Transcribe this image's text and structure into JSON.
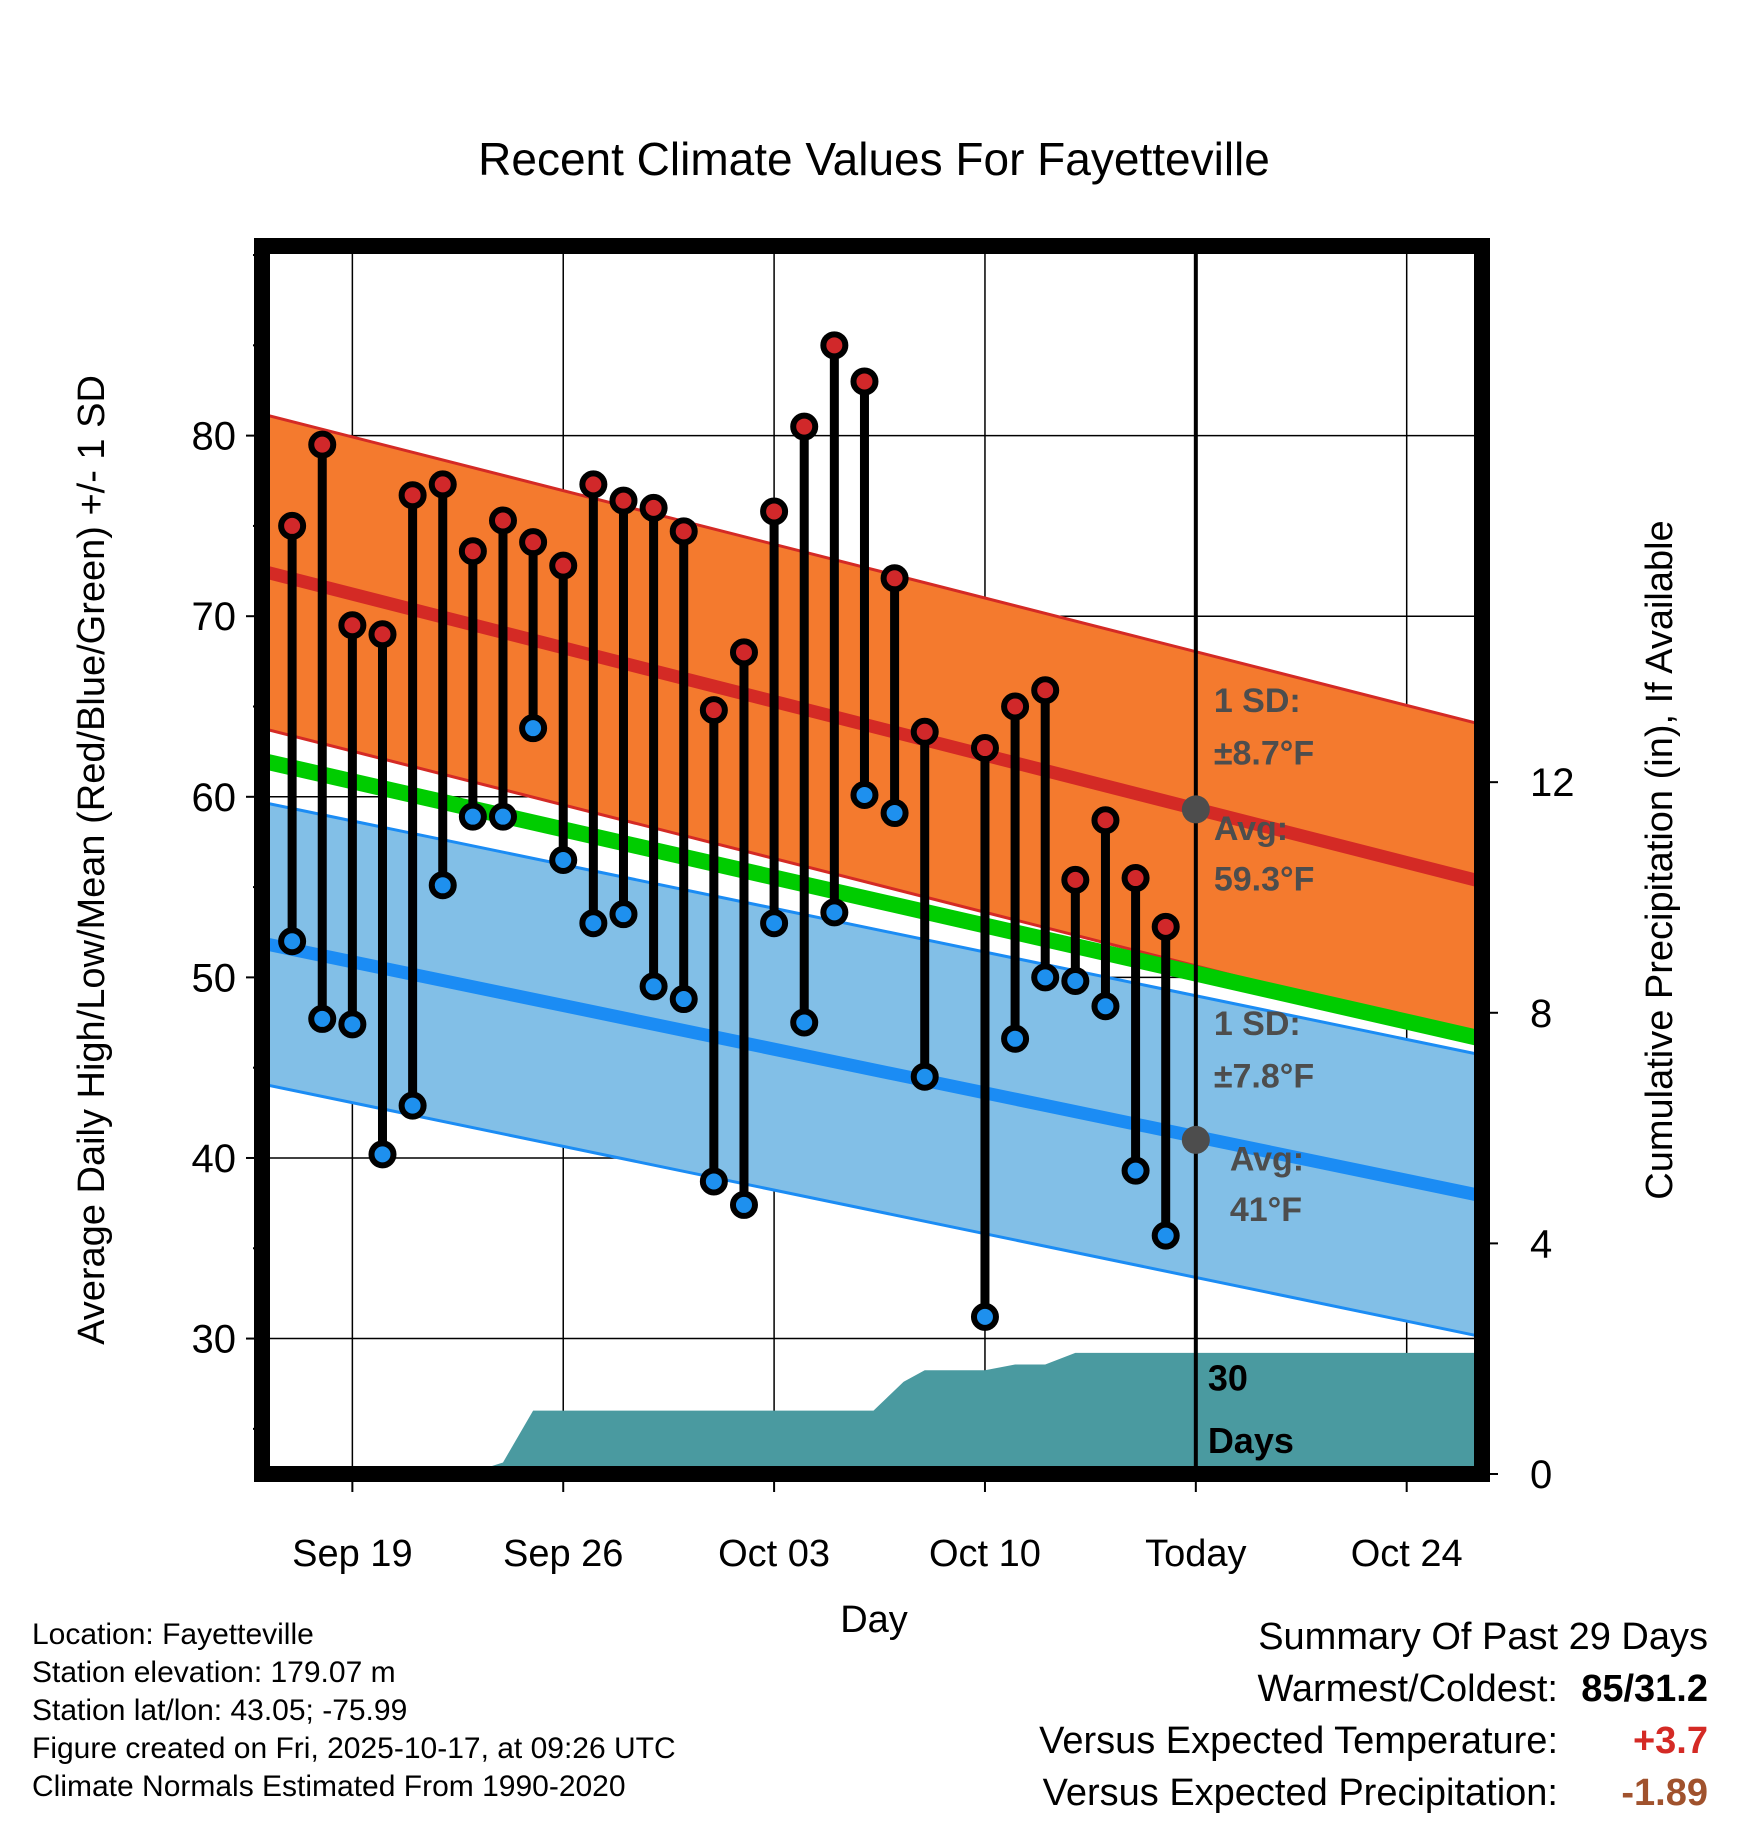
{
  "chart_data": {
    "type": "line",
    "title": "Recent Climate Values For Fayetteville",
    "xlabel": "Day",
    "ylabel": "Average Daily High/Low/Mean (Red/Blue/Green) +/- 1 SD",
    "y2label": "Cumulative Precipitation (in), If Available",
    "ylim": [
      22.5,
      90.5
    ],
    "y2lim": [
      0,
      21.3
    ],
    "yticks": [
      30,
      40,
      50,
      60,
      70,
      80
    ],
    "y2ticks": [
      0,
      4,
      8,
      12
    ],
    "xlim": [
      0,
      40.5
    ],
    "xtick_labels": [
      {
        "day": 3,
        "label": "Sep 19"
      },
      {
        "day": 10,
        "label": "Sep 26"
      },
      {
        "day": 17,
        "label": "Oct 03"
      },
      {
        "day": 24,
        "label": "Oct 10"
      },
      {
        "day": 31,
        "label": "Today"
      },
      {
        "day": 38,
        "label": "Oct 24"
      }
    ],
    "days": [
      1,
      2,
      3,
      4,
      5,
      6,
      7,
      8,
      9,
      10,
      11,
      12,
      13,
      14,
      15,
      16,
      17,
      18,
      19,
      20,
      21,
      22,
      23,
      24,
      25,
      26,
      27,
      28,
      29,
      30
    ],
    "highs": [
      75,
      79.5,
      69.5,
      69,
      76.7,
      77.3,
      73.6,
      75.3,
      74.1,
      72.8,
      77.3,
      76.4,
      76,
      74.7,
      64.8,
      68,
      75.8,
      80.5,
      85,
      83,
      72.1,
      63.6,
      null,
      62.7,
      65,
      65.9,
      55.4,
      58.7,
      55.5,
      52.8
    ],
    "lows": [
      52,
      47.7,
      47.4,
      40.2,
      42.9,
      55.1,
      58.9,
      58.9,
      63.8,
      56.5,
      53,
      53.5,
      49.5,
      48.8,
      38.7,
      37.4,
      53,
      47.5,
      53.6,
      60.1,
      59.1,
      44.5,
      null,
      31.2,
      46.6,
      50,
      49.8,
      48.4,
      39.3,
      35.7
    ],
    "normal_high": {
      "start": 72.5,
      "end": 55.3,
      "sd": 8.7
    },
    "normal_low": {
      "start": 51.9,
      "end": 37.9,
      "sd": 7.8
    },
    "normal_mean": {
      "start": 62,
      "end": 46.6
    },
    "precip_cumulative": [
      [
        0,
        0
      ],
      [
        6.8,
        0
      ],
      [
        8,
        0.2
      ],
      [
        9,
        1.1
      ],
      [
        20.3,
        1.1
      ],
      [
        21.3,
        1.6
      ],
      [
        22,
        1.8
      ],
      [
        24,
        1.8
      ],
      [
        25,
        1.9
      ],
      [
        26,
        1.9
      ],
      [
        27,
        2.1
      ],
      [
        40.5,
        2.1
      ]
    ],
    "annotations": {
      "high_sd_label": "1 SD:",
      "high_sd_value": "±8.7°F",
      "high_avg_label": "Avg:",
      "high_avg_value": "59.3°F",
      "low_sd_label": "1 SD:",
      "low_sd_value": "±7.8°F",
      "low_avg_label": "Avg:",
      "low_avg_value": "41°F",
      "days_label_1": "30",
      "days_label_2": "Days"
    },
    "today_high_avg": 59.3,
    "today_low_avg": 41,
    "colors": {
      "high_band": "#f47a2e",
      "high_line": "#d42a25",
      "low_band": "#82bfe7",
      "low_line": "#1b8cf4",
      "mean_line": "#00cc00",
      "precip": "#4a9aa0",
      "high_point": "#d1282a",
      "low_point": "#1e90ee"
    }
  },
  "footer": {
    "location": "Location: Fayetteville",
    "elevation": "Station elevation: 179.07 m",
    "latlon": "Station lat/lon: 43.05; -75.99",
    "created": "Figure created on Fri, 2025-10-17, at 09:26 UTC",
    "normals": "Climate Normals Estimated From 1990-2020"
  },
  "summary": {
    "title": "Summary Of Past 29 Days",
    "warmest_label": "Warmest/Coldest:",
    "warmest_value": "85/31.2",
    "temp_label": "Versus Expected Temperature:",
    "temp_value": "+3.7",
    "temp_color": "#d42a25",
    "precip_label": "Versus Expected Precipitation:",
    "precip_value": "-1.89",
    "precip_color": "#a0522d"
  }
}
